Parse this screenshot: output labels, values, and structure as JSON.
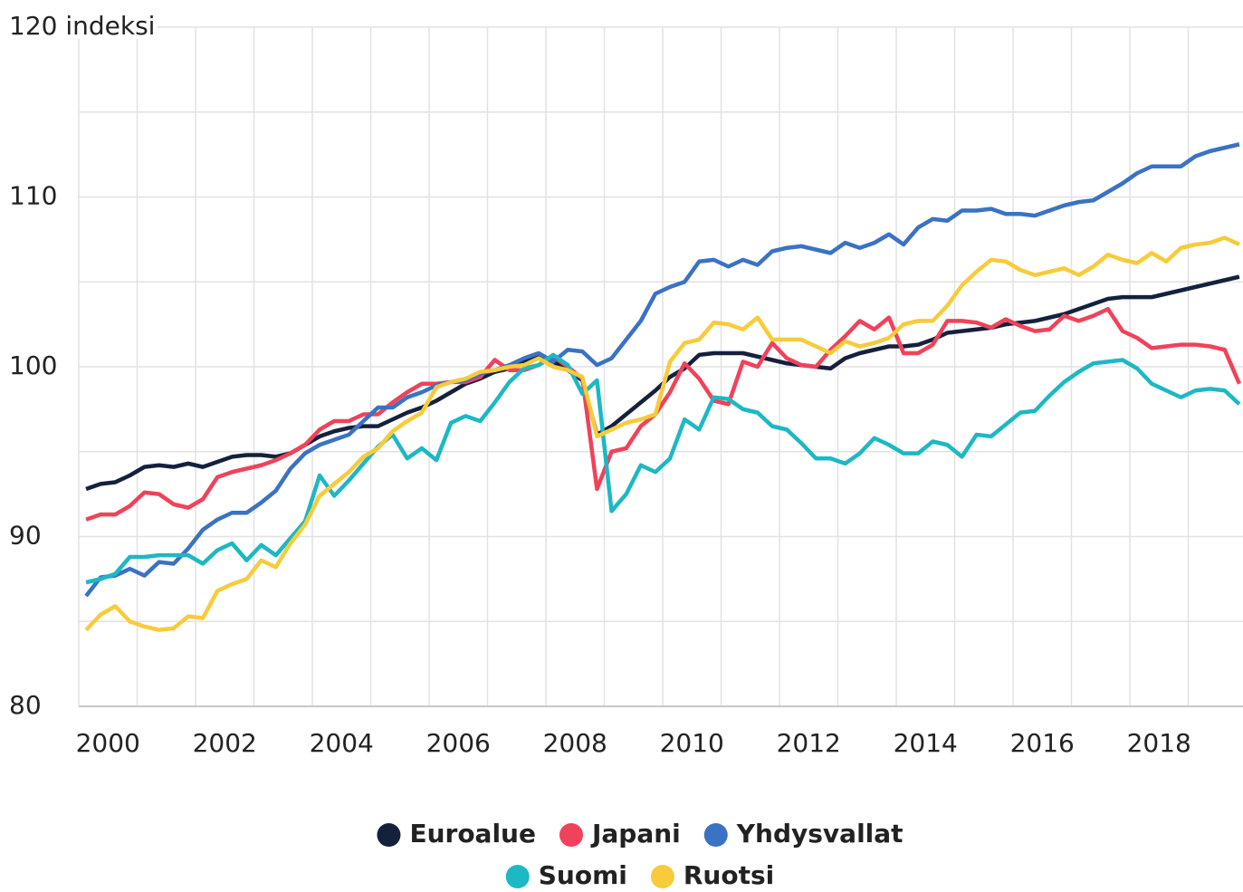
{
  "chart_data": {
    "type": "line",
    "x": [
      2000.125,
      2000.375,
      2000.625,
      2000.875,
      2001.125,
      2001.375,
      2001.625,
      2001.875,
      2002.125,
      2002.375,
      2002.625,
      2002.875,
      2003.125,
      2003.375,
      2003.625,
      2003.875,
      2004.125,
      2004.375,
      2004.625,
      2004.875,
      2005.125,
      2005.375,
      2005.625,
      2005.875,
      2006.125,
      2006.375,
      2006.625,
      2006.875,
      2007.125,
      2007.375,
      2007.625,
      2007.875,
      2008.125,
      2008.375,
      2008.625,
      2008.875,
      2009.125,
      2009.375,
      2009.625,
      2009.875,
      2010.125,
      2010.375,
      2010.625,
      2010.875,
      2011.125,
      2011.375,
      2011.625,
      2011.875,
      2012.125,
      2012.375,
      2012.625,
      2012.875,
      2013.125,
      2013.375,
      2013.625,
      2013.875,
      2014.125,
      2014.375,
      2014.625,
      2014.875,
      2015.125,
      2015.375,
      2015.625,
      2015.875,
      2016.125,
      2016.375,
      2016.625,
      2016.875,
      2017.125,
      2017.375,
      2017.625,
      2017.875,
      2018.125,
      2018.375,
      2018.625,
      2018.875,
      2019.125,
      2019.375,
      2019.625,
      2019.875
    ],
    "series": [
      {
        "name": "Euroalue",
        "color": "#14213d",
        "values": [
          92.8,
          93.1,
          93.2,
          93.6,
          94.1,
          94.2,
          94.1,
          94.3,
          94.1,
          94.4,
          94.7,
          94.8,
          94.8,
          94.7,
          94.9,
          95.4,
          95.9,
          96.2,
          96.4,
          96.5,
          96.5,
          96.9,
          97.3,
          97.6,
          98.0,
          98.5,
          99.0,
          99.3,
          99.7,
          99.9,
          100.3,
          100.6,
          100.3,
          99.8,
          99.2,
          96.0,
          96.5,
          97.2,
          97.9,
          98.6,
          99.4,
          99.9,
          100.7,
          100.8,
          100.8,
          100.8,
          100.6,
          100.4,
          100.2,
          100.1,
          100.0,
          99.9,
          100.5,
          100.8,
          101.0,
          101.2,
          101.2,
          101.3,
          101.6,
          102.0,
          102.1,
          102.2,
          102.3,
          102.5,
          102.6,
          102.7,
          102.9,
          103.1,
          103.4,
          103.7,
          104.0,
          104.1,
          104.1,
          104.1,
          104.3,
          104.5,
          104.7,
          104.9,
          105.1,
          105.3
        ]
      },
      {
        "name": "Japani",
        "color": "#f0425a",
        "values": [
          91.0,
          91.3,
          91.3,
          91.8,
          92.6,
          92.5,
          91.9,
          91.7,
          92.2,
          93.5,
          93.8,
          94.0,
          94.2,
          94.5,
          94.9,
          95.4,
          96.3,
          96.8,
          96.8,
          97.2,
          97.2,
          97.9,
          98.5,
          99.0,
          99.0,
          99.1,
          99.1,
          99.4,
          100.4,
          99.8,
          99.8,
          100.1,
          100.6,
          100.0,
          99.3,
          92.8,
          95.0,
          95.2,
          96.5,
          97.2,
          98.5,
          100.2,
          99.3,
          98.0,
          97.8,
          100.3,
          100.0,
          101.4,
          100.5,
          100.1,
          100.0,
          101.0,
          101.8,
          102.7,
          102.2,
          102.9,
          100.8,
          100.8,
          101.3,
          102.7,
          102.7,
          102.6,
          102.3,
          102.8,
          102.4,
          102.1,
          102.2,
          103.0,
          102.7,
          103.0,
          103.4,
          102.1,
          101.7,
          101.1,
          101.2,
          101.3,
          101.3,
          101.2,
          101.0,
          99.0
        ]
      },
      {
        "name": "Yhdysvallat",
        "color": "#3a72c4",
        "values": [
          86.5,
          87.6,
          87.7,
          88.1,
          87.7,
          88.5,
          88.4,
          89.3,
          90.4,
          91.0,
          91.4,
          91.4,
          92.0,
          92.7,
          94.0,
          94.9,
          95.4,
          95.7,
          96.0,
          96.8,
          97.6,
          97.6,
          98.2,
          98.5,
          98.9,
          99.1,
          99.2,
          99.6,
          99.8,
          100.1,
          100.5,
          100.8,
          100.3,
          101.0,
          100.9,
          100.1,
          100.5,
          101.6,
          102.7,
          104.3,
          104.7,
          105.0,
          106.2,
          106.3,
          105.9,
          106.3,
          106.0,
          106.8,
          107.0,
          107.1,
          106.9,
          106.7,
          107.3,
          107.0,
          107.3,
          107.8,
          107.2,
          108.2,
          108.7,
          108.6,
          109.2,
          109.2,
          109.3,
          109.0,
          109.0,
          108.9,
          109.2,
          109.5,
          109.7,
          109.8,
          110.3,
          110.8,
          111.4,
          111.8,
          111.8,
          111.8,
          112.4,
          112.7,
          112.9,
          113.1
        ]
      },
      {
        "name": "Suomi",
        "color": "#1cb8c4",
        "values": [
          87.3,
          87.5,
          87.8,
          88.8,
          88.8,
          88.9,
          88.9,
          88.9,
          88.4,
          89.2,
          89.6,
          88.6,
          89.5,
          88.9,
          89.9,
          90.9,
          93.6,
          92.4,
          93.3,
          94.3,
          95.3,
          96.0,
          94.6,
          95.2,
          94.5,
          96.7,
          97.1,
          96.8,
          97.9,
          99.1,
          99.9,
          100.1,
          100.7,
          100.1,
          98.4,
          99.2,
          91.5,
          92.5,
          94.2,
          93.8,
          94.6,
          96.9,
          96.3,
          98.2,
          98.1,
          97.5,
          97.3,
          96.5,
          96.3,
          95.5,
          94.6,
          94.6,
          94.3,
          94.9,
          95.8,
          95.4,
          94.9,
          94.9,
          95.6,
          95.4,
          94.7,
          96.0,
          95.9,
          96.6,
          97.3,
          97.4,
          98.3,
          99.1,
          99.7,
          100.2,
          100.3,
          100.4,
          99.9,
          99.0,
          98.6,
          98.2,
          98.6,
          98.7,
          98.6,
          97.8
        ]
      },
      {
        "name": "Ruotsi",
        "color": "#f7cb3a",
        "values": [
          84.5,
          85.4,
          85.9,
          85.0,
          84.7,
          84.5,
          84.6,
          85.3,
          85.2,
          86.8,
          87.2,
          87.5,
          88.6,
          88.2,
          89.6,
          90.7,
          92.4,
          93.1,
          93.8,
          94.7,
          95.2,
          96.2,
          96.8,
          97.3,
          98.8,
          99.1,
          99.3,
          99.7,
          99.8,
          100.0,
          100.1,
          100.5,
          100.0,
          99.8,
          99.4,
          95.9,
          96.3,
          96.7,
          96.9,
          97.2,
          100.3,
          101.4,
          101.6,
          102.6,
          102.5,
          102.2,
          102.9,
          101.6,
          101.6,
          101.6,
          101.2,
          100.8,
          101.5,
          101.2,
          101.4,
          101.7,
          102.5,
          102.7,
          102.7,
          103.6,
          104.8,
          105.6,
          106.3,
          106.2,
          105.7,
          105.4,
          105.6,
          105.8,
          105.4,
          105.9,
          106.6,
          106.3,
          106.1,
          106.7,
          106.2,
          107.0,
          107.2,
          107.3,
          107.6,
          107.2
        ]
      }
    ],
    "xlim": [
      2000,
      2020
    ],
    "xticks": [
      2000,
      2002,
      2004,
      2006,
      2008,
      2010,
      2012,
      2014,
      2016,
      2018
    ],
    "ylim": [
      80,
      120
    ],
    "yticks": [
      80,
      90,
      100,
      110,
      {
        "value": 120,
        "label": "120 indeksi"
      }
    ],
    "grid": true
  }
}
